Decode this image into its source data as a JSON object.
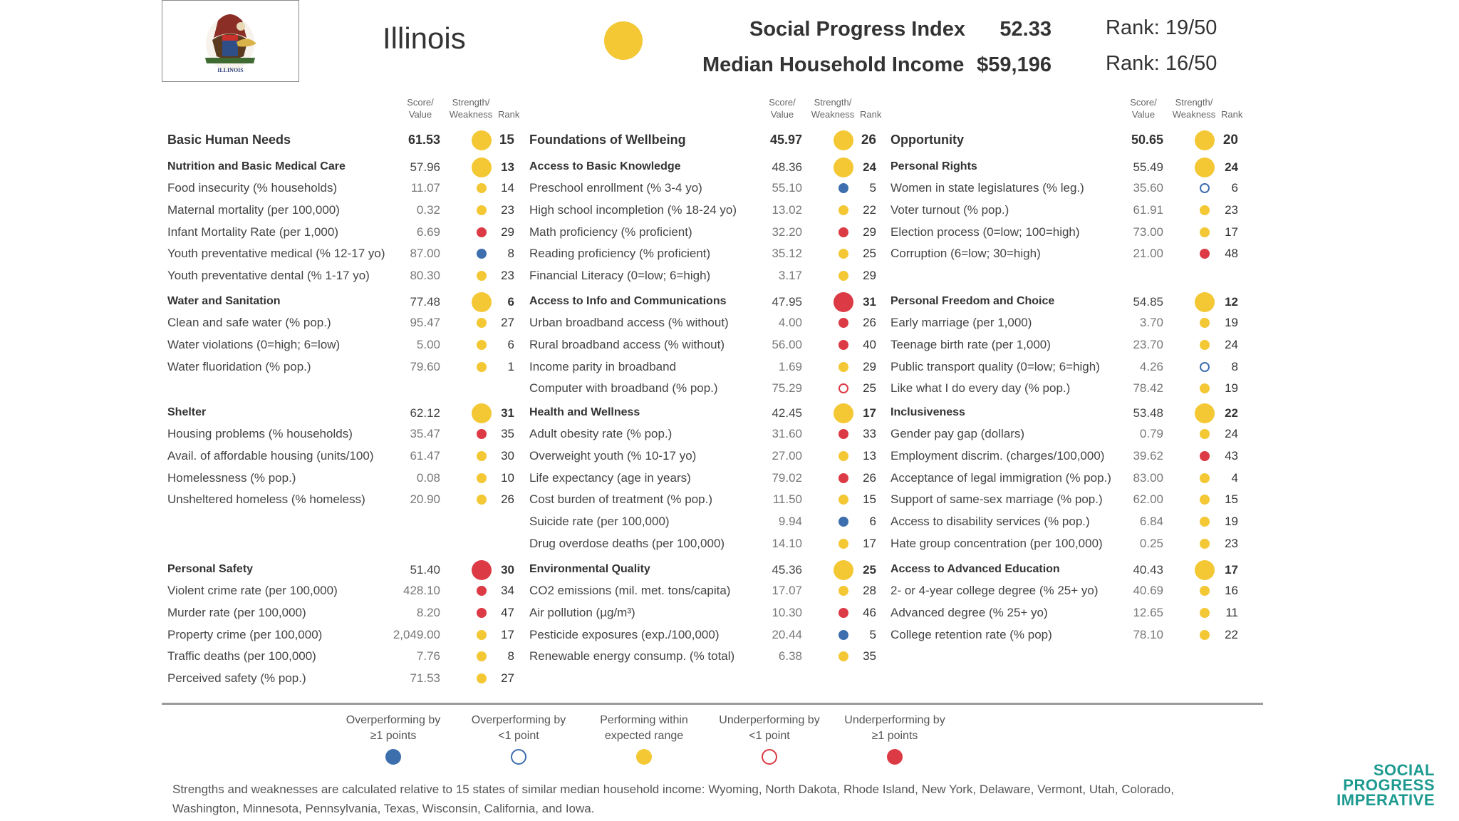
{
  "header": {
    "state": "Illinois",
    "state_seal_text": "ILLINOIS",
    "spi_label": "Social Progress Index",
    "spi_value": "52.33",
    "spi_rank": "Rank: 19/50",
    "income_label": "Median Household Income",
    "income_value": "$59,196",
    "income_rank": "Rank: 16/50",
    "overall_status": "expected"
  },
  "column_headers": {
    "score_line1": "Score/",
    "score_line2": "Value",
    "sw_line1": "Strength/",
    "sw_line2": "Weakness",
    "rank": "Rank"
  },
  "columns": [
    {
      "name": "Basic Human Needs",
      "score": "61.53",
      "status": "expected",
      "rank": "15",
      "components": [
        {
          "name": "Nutrition and Basic Medical Care",
          "score": "57.96",
          "status": "expected",
          "rank": "13",
          "indicators": [
            {
              "name": "Food insecurity (% households)",
              "value": "11.07",
              "status": "expected",
              "rank": "14"
            },
            {
              "name": "Maternal mortality (per 100,000)",
              "value": "0.32",
              "status": "expected",
              "rank": "23"
            },
            {
              "name": "Infant Mortality Rate (per 1,000)",
              "value": "6.69",
              "status": "under_strong",
              "rank": "29"
            },
            {
              "name": "Youth preventative medical (% 12-17 yo)",
              "value": "87.00",
              "status": "over_strong",
              "rank": "8"
            },
            {
              "name": "Youth preventative dental (% 1-17 yo)",
              "value": "80.30",
              "status": "expected",
              "rank": "23"
            }
          ]
        },
        {
          "name": "Water and Sanitation",
          "score": "77.48",
          "status": "expected",
          "rank": "6",
          "indicators": [
            {
              "name": "Clean and safe water (% pop.)",
              "value": "95.47",
              "status": "expected",
              "rank": "27"
            },
            {
              "name": "Water violations (0=high; 6=low)",
              "value": "5.00",
              "status": "expected",
              "rank": "6"
            },
            {
              "name": "Water fluoridation (% pop.)",
              "value": "79.60",
              "status": "expected",
              "rank": "1"
            }
          ]
        },
        {
          "name": "Shelter",
          "score": "62.12",
          "status": "expected",
          "rank": "31",
          "indicators": [
            {
              "name": "Housing problems (% households)",
              "value": "35.47",
              "status": "under_strong",
              "rank": "35"
            },
            {
              "name": "Avail. of affordable housing (units/100)",
              "value": "61.47",
              "status": "expected",
              "rank": "30"
            },
            {
              "name": "Homelessness (% pop.)",
              "value": "0.08",
              "status": "expected",
              "rank": "10"
            },
            {
              "name": "Unsheltered homeless (% homeless)",
              "value": "20.90",
              "status": "expected",
              "rank": "26"
            }
          ]
        },
        {
          "name": "Personal Safety",
          "score": "51.40",
          "status": "under_strong",
          "rank": "30",
          "indicators": [
            {
              "name": "Violent crime rate (per 100,000)",
              "value": "428.10",
              "status": "under_strong",
              "rank": "34"
            },
            {
              "name": "Murder rate (per 100,000)",
              "value": "8.20",
              "status": "under_strong",
              "rank": "47"
            },
            {
              "name": "Property crime (per 100,000)",
              "value": "2,049.00",
              "status": "expected",
              "rank": "17"
            },
            {
              "name": "Traffic deaths (per 100,000)",
              "value": "7.76",
              "status": "expected",
              "rank": "8"
            },
            {
              "name": "Perceived safety (% pop.)",
              "value": "71.53",
              "status": "expected",
              "rank": "27"
            }
          ]
        }
      ]
    },
    {
      "name": "Foundations of Wellbeing",
      "score": "45.97",
      "status": "expected",
      "rank": "26",
      "components": [
        {
          "name": "Access to Basic Knowledge",
          "score": "48.36",
          "status": "expected",
          "rank": "24",
          "indicators": [
            {
              "name": "Preschool enrollment (% 3-4 yo)",
              "value": "55.10",
              "status": "over_strong",
              "rank": "5"
            },
            {
              "name": "High school incompletion (% 18-24 yo)",
              "value": "13.02",
              "status": "expected",
              "rank": "22"
            },
            {
              "name": "Math proficiency (% proficient)",
              "value": "32.20",
              "status": "under_strong",
              "rank": "29"
            },
            {
              "name": "Reading proficiency (% proficient)",
              "value": "35.12",
              "status": "expected",
              "rank": "25"
            },
            {
              "name": "Financial Literacy (0=low; 6=high)",
              "value": "3.17",
              "status": "expected",
              "rank": "29"
            }
          ]
        },
        {
          "name": "Access to Info and Communications",
          "score": "47.95",
          "status": "under_strong",
          "rank": "31",
          "indicators": [
            {
              "name": "Urban broadband access (% without)",
              "value": "4.00",
              "status": "under_strong",
              "rank": "26"
            },
            {
              "name": "Rural broadband access (% without)",
              "value": "56.00",
              "status": "under_strong",
              "rank": "40"
            },
            {
              "name": "Income parity in broadband",
              "value": "1.69",
              "status": "expected",
              "rank": "29"
            },
            {
              "name": "Computer with broadband (% pop.)",
              "value": "75.29",
              "status": "under_weak",
              "rank": "25"
            }
          ]
        },
        {
          "name": "Health and Wellness",
          "score": "42.45",
          "status": "expected",
          "rank": "17",
          "indicators": [
            {
              "name": "Adult obesity rate (% pop.)",
              "value": "31.60",
              "status": "under_strong",
              "rank": "33"
            },
            {
              "name": "Overweight youth (% 10-17 yo)",
              "value": "27.00",
              "status": "expected",
              "rank": "13"
            },
            {
              "name": "Life expectancy (age in years)",
              "value": "79.02",
              "status": "under_strong",
              "rank": "26"
            },
            {
              "name": "Cost burden of treatment (% pop.)",
              "value": "11.50",
              "status": "expected",
              "rank": "15"
            },
            {
              "name": "Suicide rate (per 100,000)",
              "value": "9.94",
              "status": "over_strong",
              "rank": "6"
            },
            {
              "name": "Drug overdose deaths (per 100,000)",
              "value": "14.10",
              "status": "expected",
              "rank": "17"
            }
          ]
        },
        {
          "name": "Environmental Quality",
          "score": "45.36",
          "status": "expected",
          "rank": "25",
          "indicators": [
            {
              "name": "CO2 emissions (mil. met. tons/capita)",
              "value": "17.07",
              "status": "expected",
              "rank": "28"
            },
            {
              "name": "Air pollution (µg/m³)",
              "value": "10.30",
              "status": "under_strong",
              "rank": "46"
            },
            {
              "name": "Pesticide exposures (exp./100,000)",
              "value": "20.44",
              "status": "over_strong",
              "rank": "5"
            },
            {
              "name": "Renewable energy consump. (% total)",
              "value": "6.38",
              "status": "expected",
              "rank": "35"
            }
          ]
        }
      ]
    },
    {
      "name": "Opportunity",
      "score": "50.65",
      "status": "expected",
      "rank": "20",
      "components": [
        {
          "name": "Personal Rights",
          "score": "55.49",
          "status": "expected",
          "rank": "24",
          "indicators": [
            {
              "name": "Women in state legislatures (% leg.)",
              "value": "35.60",
              "status": "over_weak",
              "rank": "6"
            },
            {
              "name": "Voter turnout (% pop.)",
              "value": "61.91",
              "status": "expected",
              "rank": "23"
            },
            {
              "name": "Election process (0=low; 100=high)",
              "value": "73.00",
              "status": "expected",
              "rank": "17"
            },
            {
              "name": "Corruption (6=low; 30=high)",
              "value": "21.00",
              "status": "under_strong",
              "rank": "48"
            }
          ]
        },
        {
          "name": "Personal Freedom and Choice",
          "score": "54.85",
          "status": "expected",
          "rank": "12",
          "indicators": [
            {
              "name": "Early marriage (per 1,000)",
              "value": "3.70",
              "status": "expected",
              "rank": "19"
            },
            {
              "name": "Teenage birth rate (per 1,000)",
              "value": "23.70",
              "status": "expected",
              "rank": "24"
            },
            {
              "name": "Public transport quality (0=low; 6=high)",
              "value": "4.26",
              "status": "over_weak",
              "rank": "8"
            },
            {
              "name": "Like what I do every day (% pop.)",
              "value": "78.42",
              "status": "expected",
              "rank": "19"
            }
          ]
        },
        {
          "name": "Inclusiveness",
          "score": "53.48",
          "status": "expected",
          "rank": "22",
          "indicators": [
            {
              "name": "Gender pay gap (dollars)",
              "value": "0.79",
              "status": "expected",
              "rank": "24"
            },
            {
              "name": "Employment discrim. (charges/100,000)",
              "value": "39.62",
              "status": "under_strong",
              "rank": "43"
            },
            {
              "name": "Acceptance of legal immigration (% pop.)",
              "value": "83.00",
              "status": "expected",
              "rank": "4"
            },
            {
              "name": "Support of same-sex marriage (% pop.)",
              "value": "62.00",
              "status": "expected",
              "rank": "15"
            },
            {
              "name": "Access to disability services (% pop.)",
              "value": "6.84",
              "status": "expected",
              "rank": "19"
            },
            {
              "name": "Hate group concentration (per 100,000)",
              "value": "0.25",
              "status": "expected",
              "rank": "23"
            }
          ]
        },
        {
          "name": "Access to Advanced Education",
          "score": "40.43",
          "status": "expected",
          "rank": "17",
          "indicators": [
            {
              "name": "2- or 4-year college degree (% 25+ yo)",
              "value": "40.69",
              "status": "expected",
              "rank": "16"
            },
            {
              "name": "Advanced degree (% 25+ yo)",
              "value": "12.65",
              "status": "expected",
              "rank": "11"
            },
            {
              "name": "College retention rate (% pop)",
              "value": "78.10",
              "status": "expected",
              "rank": "22"
            }
          ]
        }
      ]
    }
  ],
  "legend": [
    {
      "line1": "Overperforming by",
      "line2": "≥1 points",
      "status": "over_strong"
    },
    {
      "line1": "Overperforming by",
      "line2": "<1 point",
      "status": "over_weak"
    },
    {
      "line1": "Performing within",
      "line2": "expected range",
      "status": "expected"
    },
    {
      "line1": "Underperforming by",
      "line2": "<1 point",
      "status": "under_weak"
    },
    {
      "line1": "Underperforming by",
      "line2": "≥1 points",
      "status": "under_strong"
    }
  ],
  "footnote": "Strengths and weaknesses are calculated relative to 15 states of similar median household income: Wyoming, North Dakota, Rhode Island, New York, Delaware, Vermont, Utah, Colorado, Washington, Minnesota, Pennsylvania, Texas, Wisconsin, California, and Iowa.",
  "brand": {
    "line1": "SOCIAL",
    "line2": "PROGRESS",
    "line3": "IMPERATIVE"
  },
  "colors": {
    "blue": "#3d6ead",
    "yellow": "#f3c834",
    "red": "#dc3a45",
    "teal": "#1c9a90",
    "text": "#3a3a3a"
  }
}
